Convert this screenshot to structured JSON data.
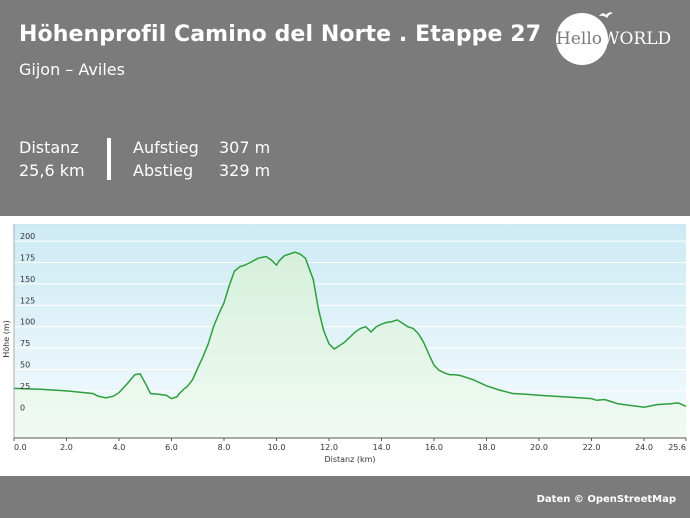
{
  "header": {
    "title": "Höhenprofil Camino del Norte . Etappe 27",
    "subtitle": "Gijon – Aviles"
  },
  "stats": {
    "distance_label": "Distanz",
    "distance_value": "25,6 km",
    "ascent_label": "Aufstieg",
    "ascent_value": "307 m",
    "descent_label": "Abstieg",
    "descent_value": "329 m"
  },
  "logo": {
    "text_part1": "Hello",
    "text_part2": "WORLD"
  },
  "attribution": "Daten © OpenStreetMap",
  "colors": {
    "background": "#7b7b7b",
    "line": "#2e9e3e",
    "fill_top": "#d9f2df",
    "plot_top": "#cdeaf4"
  },
  "chart_data": {
    "type": "area",
    "xlabel": "Distanz (km)",
    "ylabel": "Höhe (m)",
    "xlim": [
      0,
      25.6
    ],
    "ylim": [
      -30,
      220
    ],
    "x_ticks": [
      0,
      2,
      4,
      6,
      8,
      10,
      12,
      14,
      16,
      18,
      20,
      22,
      24,
      25.6
    ],
    "x_tick_labels": [
      "0.0",
      "2.0",
      "4.0",
      "6.0",
      "8.0",
      "10.0",
      "12.0",
      "14.0",
      "16.0",
      "18.0",
      "20.0",
      "22.0",
      "24.0",
      "25.6"
    ],
    "y_ticks": [
      0,
      25,
      50,
      75,
      100,
      125,
      150,
      175,
      200
    ],
    "y_tick_labels": [
      "0",
      "25",
      "50",
      "75",
      "100",
      "125",
      "150",
      "175",
      "200"
    ],
    "grid": true,
    "series": [
      {
        "x": [
          0,
          1,
          2,
          3,
          3.2,
          3.5,
          3.8,
          4.0,
          4.3,
          4.6,
          4.8,
          5.0,
          5.2,
          5.5,
          5.8,
          6.0,
          6.2,
          6.3,
          6.5,
          6.6,
          6.8,
          7.0,
          7.2,
          7.4,
          7.6,
          7.8,
          8.0,
          8.2,
          8.4,
          8.6,
          8.8,
          9.0,
          9.3,
          9.6,
          9.8,
          10.0,
          10.1,
          10.3,
          10.5,
          10.7,
          10.9,
          11.1,
          11.4,
          11.6,
          11.8,
          12.0,
          12.2,
          12.4,
          12.6,
          12.8,
          13.0,
          13.2,
          13.4,
          13.6,
          13.8,
          14.0,
          14.2,
          14.4,
          14.6,
          14.8,
          15.0,
          15.2,
          15.4,
          15.6,
          15.8,
          16.0,
          16.2,
          16.4,
          16.6,
          16.8,
          17.0,
          17.5,
          18.0,
          18.5,
          19.0,
          19.5,
          20.0,
          20.5,
          21.0,
          21.5,
          22.0,
          22.2,
          22.5,
          22.8,
          23.0,
          23.5,
          24.0,
          24.5,
          25.0,
          25.3,
          25.6
        ],
        "y": [
          28,
          27,
          25,
          22,
          19,
          17,
          19,
          23,
          33,
          44,
          45,
          34,
          22,
          21,
          20,
          16,
          18,
          22,
          28,
          30,
          38,
          52,
          65,
          80,
          100,
          115,
          128,
          148,
          165,
          170,
          172,
          175,
          180,
          182,
          178,
          172,
          177,
          183,
          185,
          187,
          185,
          180,
          155,
          120,
          95,
          80,
          74,
          78,
          82,
          88,
          94,
          98,
          100,
          94,
          100,
          103,
          105,
          106,
          108,
          104,
          100,
          98,
          92,
          82,
          68,
          55,
          49,
          46,
          44,
          44,
          43,
          38,
          31,
          26,
          22,
          21,
          20,
          19,
          18,
          17,
          16,
          14,
          15,
          12,
          10,
          8,
          6,
          9,
          10,
          11,
          7
        ]
      }
    ]
  }
}
